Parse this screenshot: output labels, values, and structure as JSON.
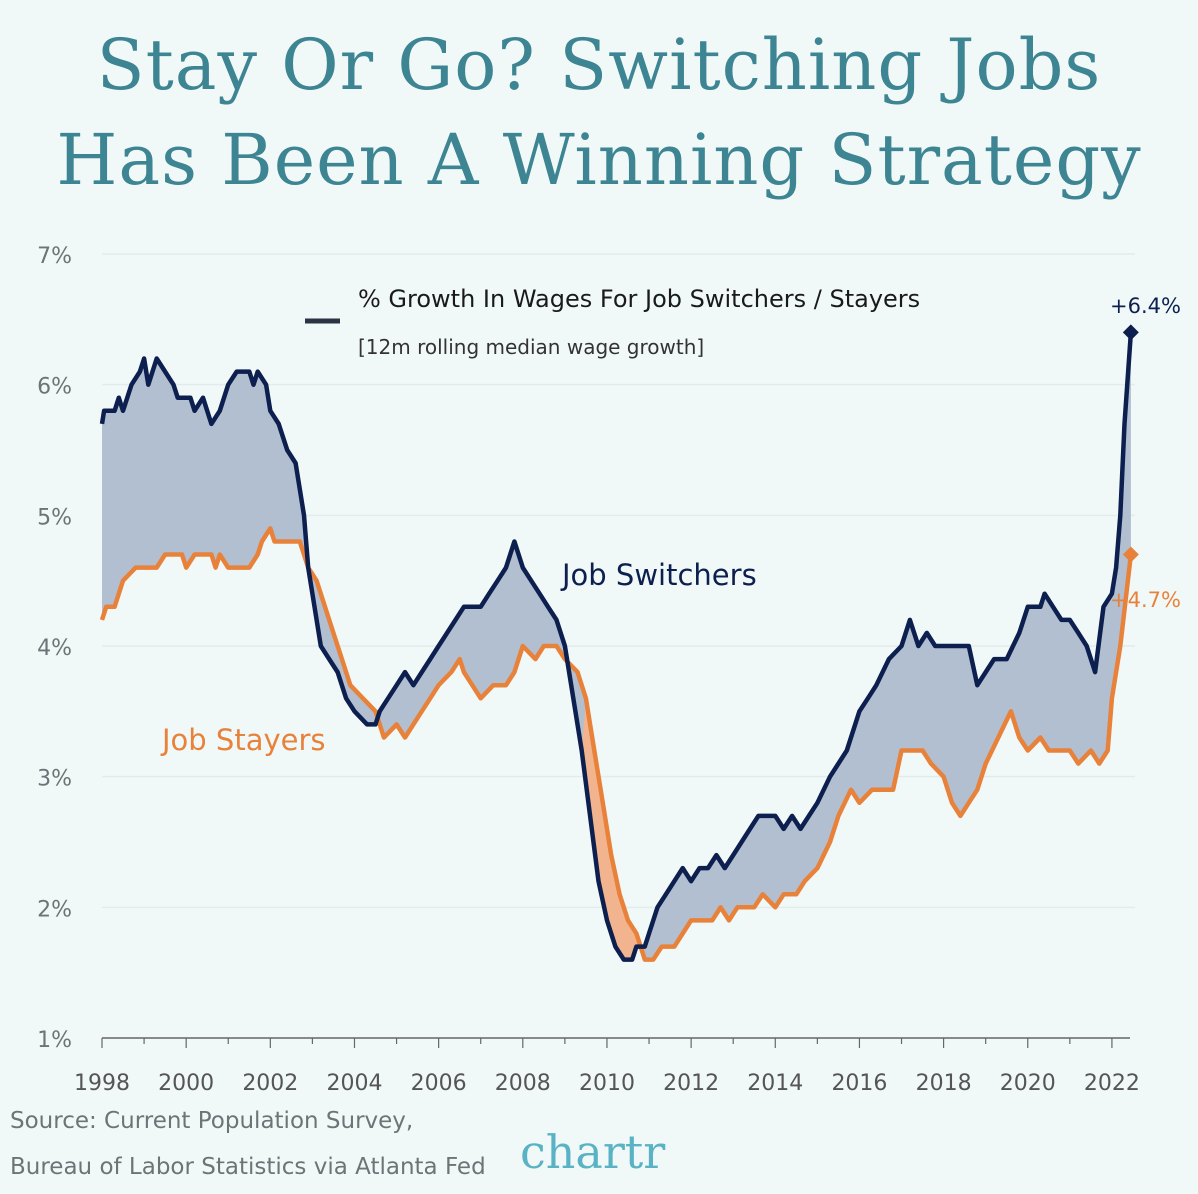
{
  "title_lines": [
    "Stay Or Go? Switching Jobs",
    "Has Been A Winning Strategy"
  ],
  "source_lines": [
    "Source: Current Population Survey,",
    "Bureau of Labor Statistics via Atlanta Fed"
  ],
  "logo": "chartr",
  "colors": {
    "background": "#f1f9f8",
    "title": "#3d8593",
    "switchers": "#0d1f4f",
    "stayers": "#e8823a",
    "fill_between": "#b1bfd0",
    "fill_inverted": "#f2b48e"
  },
  "chart_data": {
    "type": "line",
    "title": "% Growth In Wages For Job Switchers / Stayers",
    "subtitle": "[12m rolling median wage growth]",
    "legend_position": "top-center",
    "xlim": [
      1998,
      2022.5
    ],
    "ylim": [
      1,
      7
    ],
    "x_ticks": [
      "1998",
      "2000",
      "2002",
      "2004",
      "2006",
      "2008",
      "2010",
      "2012",
      "2014",
      "2016",
      "2018",
      "2020",
      "2022"
    ],
    "y_ticks": [
      "1%",
      "2%",
      "3%",
      "4%",
      "5%",
      "6%",
      "7%"
    ],
    "grid": "horizontal",
    "annotations": {
      "switchers_end": "+6.4%",
      "stayers_end": "+4.7%"
    },
    "series": [
      {
        "name": "Job Switchers",
        "points": [
          [
            1998.0,
            5.7
          ],
          [
            1998.05,
            5.8
          ],
          [
            1998.3,
            5.8
          ],
          [
            1998.4,
            5.9
          ],
          [
            1998.5,
            5.8
          ],
          [
            1998.7,
            6.0
          ],
          [
            1998.9,
            6.1
          ],
          [
            1999.0,
            6.2
          ],
          [
            1999.1,
            6.0
          ],
          [
            1999.3,
            6.2
          ],
          [
            1999.5,
            6.1
          ],
          [
            1999.7,
            6.0
          ],
          [
            1999.8,
            5.9
          ],
          [
            2000.1,
            5.9
          ],
          [
            2000.2,
            5.8
          ],
          [
            2000.4,
            5.9
          ],
          [
            2000.6,
            5.7
          ],
          [
            2000.8,
            5.8
          ],
          [
            2001.0,
            6.0
          ],
          [
            2001.2,
            6.1
          ],
          [
            2001.5,
            6.1
          ],
          [
            2001.6,
            6.0
          ],
          [
            2001.7,
            6.1
          ],
          [
            2001.9,
            6.0
          ],
          [
            2002.0,
            5.8
          ],
          [
            2002.2,
            5.7
          ],
          [
            2002.4,
            5.5
          ],
          [
            2002.6,
            5.4
          ],
          [
            2002.8,
            5.0
          ],
          [
            2002.9,
            4.6
          ],
          [
            2003.0,
            4.4
          ],
          [
            2003.2,
            4.0
          ],
          [
            2003.4,
            3.9
          ],
          [
            2003.6,
            3.8
          ],
          [
            2003.8,
            3.6
          ],
          [
            2004.0,
            3.5
          ],
          [
            2004.3,
            3.4
          ],
          [
            2004.5,
            3.4
          ],
          [
            2004.6,
            3.5
          ],
          [
            2004.8,
            3.6
          ],
          [
            2005.0,
            3.7
          ],
          [
            2005.2,
            3.8
          ],
          [
            2005.4,
            3.7
          ],
          [
            2005.6,
            3.8
          ],
          [
            2005.8,
            3.9
          ],
          [
            2006.0,
            4.0
          ],
          [
            2006.2,
            4.1
          ],
          [
            2006.4,
            4.2
          ],
          [
            2006.6,
            4.3
          ],
          [
            2007.0,
            4.3
          ],
          [
            2007.2,
            4.4
          ],
          [
            2007.4,
            4.5
          ],
          [
            2007.6,
            4.6
          ],
          [
            2007.8,
            4.8
          ],
          [
            2008.0,
            4.6
          ],
          [
            2008.2,
            4.5
          ],
          [
            2008.4,
            4.4
          ],
          [
            2008.6,
            4.3
          ],
          [
            2008.8,
            4.2
          ],
          [
            2009.0,
            4.0
          ],
          [
            2009.2,
            3.6
          ],
          [
            2009.4,
            3.2
          ],
          [
            2009.6,
            2.7
          ],
          [
            2009.8,
            2.2
          ],
          [
            2010.0,
            1.9
          ],
          [
            2010.2,
            1.7
          ],
          [
            2010.4,
            1.6
          ],
          [
            2010.6,
            1.6
          ],
          [
            2010.7,
            1.7
          ],
          [
            2010.9,
            1.7
          ],
          [
            2011.0,
            1.8
          ],
          [
            2011.2,
            2.0
          ],
          [
            2011.4,
            2.1
          ],
          [
            2011.6,
            2.2
          ],
          [
            2011.8,
            2.3
          ],
          [
            2012.0,
            2.2
          ],
          [
            2012.2,
            2.3
          ],
          [
            2012.4,
            2.3
          ],
          [
            2012.6,
            2.4
          ],
          [
            2012.8,
            2.3
          ],
          [
            2013.0,
            2.4
          ],
          [
            2013.2,
            2.5
          ],
          [
            2013.4,
            2.6
          ],
          [
            2013.6,
            2.7
          ],
          [
            2014.0,
            2.7
          ],
          [
            2014.2,
            2.6
          ],
          [
            2014.4,
            2.7
          ],
          [
            2014.6,
            2.6
          ],
          [
            2014.8,
            2.7
          ],
          [
            2015.0,
            2.8
          ],
          [
            2015.3,
            3.0
          ],
          [
            2015.5,
            3.1
          ],
          [
            2015.7,
            3.2
          ],
          [
            2016.0,
            3.5
          ],
          [
            2016.2,
            3.6
          ],
          [
            2016.4,
            3.7
          ],
          [
            2016.7,
            3.9
          ],
          [
            2017.0,
            4.0
          ],
          [
            2017.2,
            4.2
          ],
          [
            2017.4,
            4.0
          ],
          [
            2017.6,
            4.1
          ],
          [
            2017.8,
            4.0
          ],
          [
            2018.6,
            4.0
          ],
          [
            2018.8,
            3.7
          ],
          [
            2019.0,
            3.8
          ],
          [
            2019.2,
            3.9
          ],
          [
            2019.5,
            3.9
          ],
          [
            2019.8,
            4.1
          ],
          [
            2020.0,
            4.3
          ],
          [
            2020.3,
            4.3
          ],
          [
            2020.4,
            4.4
          ],
          [
            2020.6,
            4.3
          ],
          [
            2020.8,
            4.2
          ],
          [
            2021.0,
            4.2
          ],
          [
            2021.2,
            4.1
          ],
          [
            2021.4,
            4.0
          ],
          [
            2021.6,
            3.8
          ],
          [
            2021.8,
            4.3
          ],
          [
            2022.0,
            4.4
          ],
          [
            2022.1,
            4.6
          ],
          [
            2022.2,
            5.0
          ],
          [
            2022.3,
            5.7
          ],
          [
            2022.45,
            6.4
          ]
        ]
      },
      {
        "name": "Job Stayers",
        "points": [
          [
            1998.0,
            4.2
          ],
          [
            1998.1,
            4.3
          ],
          [
            1998.3,
            4.3
          ],
          [
            1998.5,
            4.5
          ],
          [
            1998.8,
            4.6
          ],
          [
            1999.3,
            4.6
          ],
          [
            1999.5,
            4.7
          ],
          [
            1999.9,
            4.7
          ],
          [
            2000.0,
            4.6
          ],
          [
            2000.2,
            4.7
          ],
          [
            2000.6,
            4.7
          ],
          [
            2000.7,
            4.6
          ],
          [
            2000.8,
            4.7
          ],
          [
            2001.0,
            4.6
          ],
          [
            2001.5,
            4.6
          ],
          [
            2001.7,
            4.7
          ],
          [
            2001.8,
            4.8
          ],
          [
            2002.0,
            4.9
          ],
          [
            2002.1,
            4.8
          ],
          [
            2002.7,
            4.8
          ],
          [
            2002.9,
            4.6
          ],
          [
            2003.1,
            4.5
          ],
          [
            2003.3,
            4.3
          ],
          [
            2003.5,
            4.1
          ],
          [
            2003.7,
            3.9
          ],
          [
            2003.9,
            3.7
          ],
          [
            2004.2,
            3.6
          ],
          [
            2004.5,
            3.5
          ],
          [
            2004.7,
            3.3
          ],
          [
            2005.0,
            3.4
          ],
          [
            2005.2,
            3.3
          ],
          [
            2005.4,
            3.4
          ],
          [
            2005.6,
            3.5
          ],
          [
            2005.8,
            3.6
          ],
          [
            2006.0,
            3.7
          ],
          [
            2006.3,
            3.8
          ],
          [
            2006.5,
            3.9
          ],
          [
            2006.6,
            3.8
          ],
          [
            2006.8,
            3.7
          ],
          [
            2007.0,
            3.6
          ],
          [
            2007.3,
            3.7
          ],
          [
            2007.6,
            3.7
          ],
          [
            2007.8,
            3.8
          ],
          [
            2008.0,
            4.0
          ],
          [
            2008.3,
            3.9
          ],
          [
            2008.5,
            4.0
          ],
          [
            2008.8,
            4.0
          ],
          [
            2009.0,
            3.9
          ],
          [
            2009.3,
            3.8
          ],
          [
            2009.5,
            3.6
          ],
          [
            2009.7,
            3.2
          ],
          [
            2009.9,
            2.8
          ],
          [
            2010.1,
            2.4
          ],
          [
            2010.3,
            2.1
          ],
          [
            2010.5,
            1.9
          ],
          [
            2010.7,
            1.8
          ],
          [
            2010.9,
            1.6
          ],
          [
            2011.1,
            1.6
          ],
          [
            2011.3,
            1.7
          ],
          [
            2011.6,
            1.7
          ],
          [
            2011.8,
            1.8
          ],
          [
            2012.0,
            1.9
          ],
          [
            2012.5,
            1.9
          ],
          [
            2012.7,
            2.0
          ],
          [
            2012.9,
            1.9
          ],
          [
            2013.1,
            2.0
          ],
          [
            2013.5,
            2.0
          ],
          [
            2013.7,
            2.1
          ],
          [
            2014.0,
            2.0
          ],
          [
            2014.2,
            2.1
          ],
          [
            2014.5,
            2.1
          ],
          [
            2014.7,
            2.2
          ],
          [
            2015.0,
            2.3
          ],
          [
            2015.3,
            2.5
          ],
          [
            2015.5,
            2.7
          ],
          [
            2015.8,
            2.9
          ],
          [
            2016.0,
            2.8
          ],
          [
            2016.3,
            2.9
          ],
          [
            2016.8,
            2.9
          ],
          [
            2017.0,
            3.2
          ],
          [
            2017.5,
            3.2
          ],
          [
            2017.7,
            3.1
          ],
          [
            2018.0,
            3.0
          ],
          [
            2018.2,
            2.8
          ],
          [
            2018.4,
            2.7
          ],
          [
            2018.6,
            2.8
          ],
          [
            2018.8,
            2.9
          ],
          [
            2019.0,
            3.1
          ],
          [
            2019.3,
            3.3
          ],
          [
            2019.6,
            3.5
          ],
          [
            2019.8,
            3.3
          ],
          [
            2020.0,
            3.2
          ],
          [
            2020.3,
            3.3
          ],
          [
            2020.5,
            3.2
          ],
          [
            2021.0,
            3.2
          ],
          [
            2021.2,
            3.1
          ],
          [
            2021.5,
            3.2
          ],
          [
            2021.7,
            3.1
          ],
          [
            2021.9,
            3.2
          ],
          [
            2022.0,
            3.6
          ],
          [
            2022.2,
            4.0
          ],
          [
            2022.45,
            4.7
          ]
        ]
      }
    ]
  }
}
